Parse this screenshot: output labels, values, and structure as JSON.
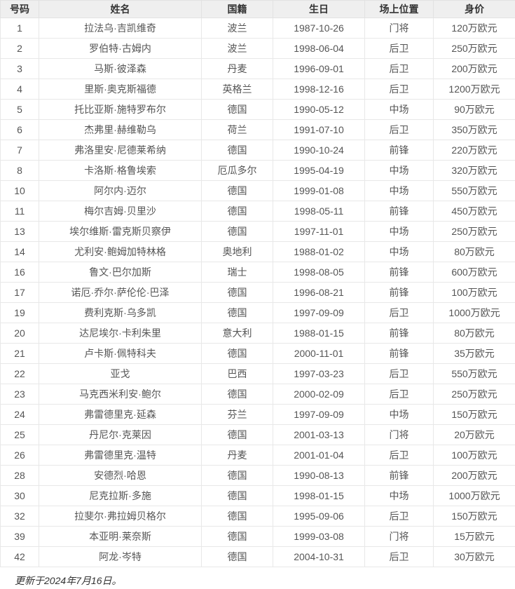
{
  "table": {
    "columns": [
      "号码",
      "姓名",
      "国籍",
      "生日",
      "场上位置",
      "身价"
    ],
    "rows": [
      [
        "1",
        "拉法乌·吉凯维奇",
        "波兰",
        "1987-10-26",
        "门将",
        "120万欧元"
      ],
      [
        "2",
        "罗伯特·古姆内",
        "波兰",
        "1998-06-04",
        "后卫",
        "250万欧元"
      ],
      [
        "3",
        "马斯·彼泽森",
        "丹麦",
        "1996-09-01",
        "后卫",
        "200万欧元"
      ],
      [
        "4",
        "里斯·奥克斯福德",
        "英格兰",
        "1998-12-16",
        "后卫",
        "1200万欧元"
      ],
      [
        "5",
        "托比亚斯·施特罗布尔",
        "德国",
        "1990-05-12",
        "中场",
        "90万欧元"
      ],
      [
        "6",
        "杰弗里·赫维勒乌",
        "荷兰",
        "1991-07-10",
        "后卫",
        "350万欧元"
      ],
      [
        "7",
        "弗洛里安·尼德莱希纳",
        "德国",
        "1990-10-24",
        "前锋",
        "220万欧元"
      ],
      [
        "8",
        "卡洛斯·格鲁埃索",
        "厄瓜多尔",
        "1995-04-19",
        "中场",
        "320万欧元"
      ],
      [
        "10",
        "阿尔内·迈尔",
        "德国",
        "1999-01-08",
        "中场",
        "550万欧元"
      ],
      [
        "11",
        "梅尔吉姆·贝里沙",
        "德国",
        "1998-05-11",
        "前锋",
        "450万欧元"
      ],
      [
        "13",
        "埃尔维斯·雷克斯贝察伊",
        "德国",
        "1997-11-01",
        "中场",
        "250万欧元"
      ],
      [
        "14",
        "尤利安·鲍姆加特林格",
        "奥地利",
        "1988-01-02",
        "中场",
        "80万欧元"
      ],
      [
        "16",
        "鲁文·巴尔加斯",
        "瑞士",
        "1998-08-05",
        "前锋",
        "600万欧元"
      ],
      [
        "17",
        "诺厄·乔尔·萨伦伦·巴泽",
        "德国",
        "1996-08-21",
        "前锋",
        "100万欧元"
      ],
      [
        "19",
        "费利克斯·乌多凯",
        "德国",
        "1997-09-09",
        "后卫",
        "1000万欧元"
      ],
      [
        "20",
        "达尼埃尔·卡利朱里",
        "意大利",
        "1988-01-15",
        "前锋",
        "80万欧元"
      ],
      [
        "21",
        "卢卡斯·佩特科夫",
        "德国",
        "2000-11-01",
        "前锋",
        "35万欧元"
      ],
      [
        "22",
        "亚戈",
        "巴西",
        "1997-03-23",
        "后卫",
        "550万欧元"
      ],
      [
        "23",
        "马克西米利安·鲍尔",
        "德国",
        "2000-02-09",
        "后卫",
        "250万欧元"
      ],
      [
        "24",
        "弗雷德里克·延森",
        "芬兰",
        "1997-09-09",
        "中场",
        "150万欧元"
      ],
      [
        "25",
        "丹尼尔·克莱因",
        "德国",
        "2001-03-13",
        "门将",
        "20万欧元"
      ],
      [
        "26",
        "弗雷德里克·温特",
        "丹麦",
        "2001-01-04",
        "后卫",
        "100万欧元"
      ],
      [
        "28",
        "安德烈·哈恩",
        "德国",
        "1990-08-13",
        "前锋",
        "200万欧元"
      ],
      [
        "30",
        "尼克拉斯·多施",
        "德国",
        "1998-01-15",
        "中场",
        "1000万欧元"
      ],
      [
        "32",
        "拉斐尔·弗拉姆贝格尔",
        "德国",
        "1995-09-06",
        "后卫",
        "150万欧元"
      ],
      [
        "39",
        "本亚明·莱奈斯",
        "德国",
        "1999-03-08",
        "门将",
        "15万欧元"
      ],
      [
        "42",
        "阿龙·岑特",
        "德国",
        "2004-10-31",
        "后卫",
        "30万欧元"
      ]
    ]
  },
  "footer": {
    "note": "更新于2024年7月16日。"
  },
  "colors": {
    "header_bg": "#efefef",
    "border": "#e2e2e2",
    "header_text": "#333333",
    "cell_text": "#555555"
  }
}
